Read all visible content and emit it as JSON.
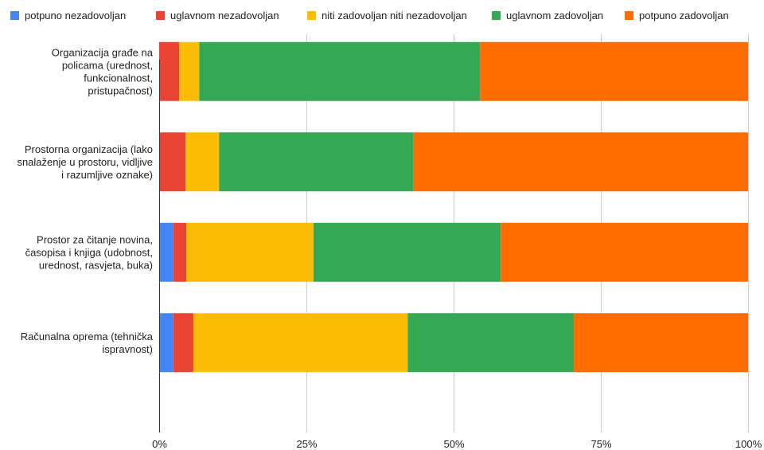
{
  "chart_data": {
    "type": "bar",
    "orientation": "horizontal",
    "stacked": "percent",
    "categories": [
      [
        "Organizacija građe na",
        "policama (urednost,",
        "funkcionalnost,",
        "pristupačnost)"
      ],
      [
        "Prostorna organizacija (lako",
        "snalaženje u prostoru, vidljive",
        "i razumljive oznake)"
      ],
      [
        "Prostor za čitanje novina,",
        "časopisa i knjiga (udobnost,",
        "urednost, rasvjeta, buka)"
      ],
      [
        "Računalna oprema (tehnička",
        "ispravnost)"
      ]
    ],
    "series": [
      {
        "name": "potpuno nezadovoljan",
        "color": "#4285f4",
        "values": [
          0,
          0,
          2.4,
          2.4
        ]
      },
      {
        "name": "uglavnom nezadovoljan",
        "color": "#ea4335",
        "values": [
          3.4,
          4.5,
          2.2,
          3.4
        ]
      },
      {
        "name": "niti zadovoljan niti nezadovoljan",
        "color": "#fbbc04",
        "values": [
          3.4,
          5.7,
          21.6,
          36.4
        ]
      },
      {
        "name": "uglavnom zadovoljan",
        "color": "#34a853",
        "values": [
          47.7,
          33.0,
          31.8,
          28.2
        ]
      },
      {
        "name": "potpuno zadovoljan",
        "color": "#ff6d01",
        "values": [
          45.5,
          56.8,
          42.0,
          29.6
        ]
      }
    ],
    "xlim": [
      0,
      100
    ],
    "xticks": [
      "0%",
      "25%",
      "50%",
      "75%",
      "100%"
    ],
    "grid": true,
    "legend_position": "top"
  }
}
